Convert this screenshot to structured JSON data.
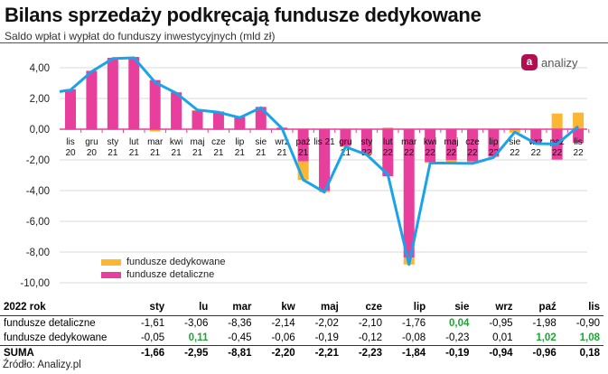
{
  "chart_data": {
    "type": "bar",
    "title": "Bilans sprzedaży podkręcają fundusze dedykowane",
    "subtitle": "Saldo wpłat i wypłat do funduszy inwestycyjnych (mld zł)",
    "ylim": [
      -10,
      4.8
    ],
    "yticks": [
      "4,00",
      "2,00",
      "0,00",
      "-2,00",
      "-4,00",
      "-6,00",
      "-8,00",
      "-10,00"
    ],
    "ytick_values": [
      4,
      2,
      0,
      -2,
      -4,
      -6,
      -8,
      -10
    ],
    "categories": [
      [
        "lis",
        "20"
      ],
      [
        "gru",
        "20"
      ],
      [
        "sty",
        "21"
      ],
      [
        "lut",
        "21"
      ],
      [
        "mar",
        "21"
      ],
      [
        "kwi",
        "21"
      ],
      [
        "maj",
        "21"
      ],
      [
        "cze",
        "21"
      ],
      [
        "lip",
        "21"
      ],
      [
        "sie",
        "21"
      ],
      [
        "wrz",
        "21"
      ],
      [
        "paź",
        "21"
      ],
      [
        "lis 21",
        ""
      ],
      [
        "gru",
        "21"
      ],
      [
        "sty",
        "22"
      ],
      [
        "lut",
        "22"
      ],
      [
        "mar",
        "22"
      ],
      [
        "kwi",
        "22"
      ],
      [
        "maj",
        "22"
      ],
      [
        "cze",
        "22"
      ],
      [
        "lip",
        "22"
      ],
      [
        "sie",
        "22"
      ],
      [
        "wrz",
        "22"
      ],
      [
        "paź",
        "22"
      ],
      [
        "lis",
        "22"
      ]
    ],
    "series": [
      {
        "name": "fundusze detaliczne",
        "color": "#e83e9c",
        "values": [
          2.6,
          3.8,
          4.65,
          4.7,
          3.2,
          2.4,
          1.2,
          1.15,
          0.8,
          1.45,
          0.1,
          -2.1,
          -4.0,
          -1.1,
          -1.61,
          -3.06,
          -8.36,
          -2.14,
          -2.02,
          -2.1,
          -1.76,
          0.04,
          -0.95,
          -1.98,
          -0.9
        ]
      },
      {
        "name": "fundusze dedykowane",
        "color": "#fbb632",
        "values": [
          -0.05,
          -0.05,
          -0.05,
          -0.05,
          -0.15,
          -0.05,
          0.05,
          -0.05,
          -0.05,
          -0.05,
          -0.05,
          -1.2,
          -0.1,
          -0.05,
          -0.05,
          0.11,
          -0.45,
          -0.06,
          -0.19,
          -0.12,
          -0.08,
          -0.23,
          0.01,
          1.02,
          1.08
        ]
      },
      {
        "name": "SUMA",
        "type": "line",
        "color": "#19a3e8",
        "values": [
          2.55,
          3.75,
          4.6,
          4.65,
          3.05,
          2.35,
          1.25,
          1.1,
          0.75,
          1.4,
          0.05,
          -3.3,
          -4.1,
          -1.15,
          -1.66,
          -2.95,
          -8.81,
          -2.2,
          -2.21,
          -2.23,
          -1.84,
          -0.19,
          -0.94,
          -0.96,
          0.18
        ]
      }
    ],
    "legend": [
      "fundusze dedykowane",
      "fundusze detaliczne"
    ],
    "legend_position": "bottom-left",
    "grid": true
  },
  "logo_text": "analizy",
  "table": {
    "headers": [
      "2022 rok",
      "sty",
      "lu",
      "mar",
      "kw",
      "maj",
      "cze",
      "lip",
      "sie",
      "wrz",
      "paź",
      "lis"
    ],
    "rows": [
      {
        "label": "fundusze detaliczne",
        "values": [
          "-1,61",
          "-3,06",
          "-8,36",
          "-2,14",
          "-2,02",
          "-2,10",
          "-1,76",
          "0,04",
          "-0,95",
          "-1,98",
          "-0,90"
        ]
      },
      {
        "label": "fundusze dedykowane",
        "values": [
          "-0,05",
          "0,11",
          "-0,45",
          "-0,06",
          "-0,19",
          "-0,12",
          "-0,08",
          "-0,23",
          "0,01",
          "1,02",
          "1,08"
        ]
      },
      {
        "label": "SUMA",
        "values": [
          "-1,66",
          "-2,95",
          "-8,81",
          "-2,20",
          "-2,21",
          "-2,23",
          "-1,84",
          "-0,19",
          "-0,94",
          "-0,96",
          "0,18"
        ]
      }
    ]
  },
  "source": "Źródło: Analizy.pl"
}
